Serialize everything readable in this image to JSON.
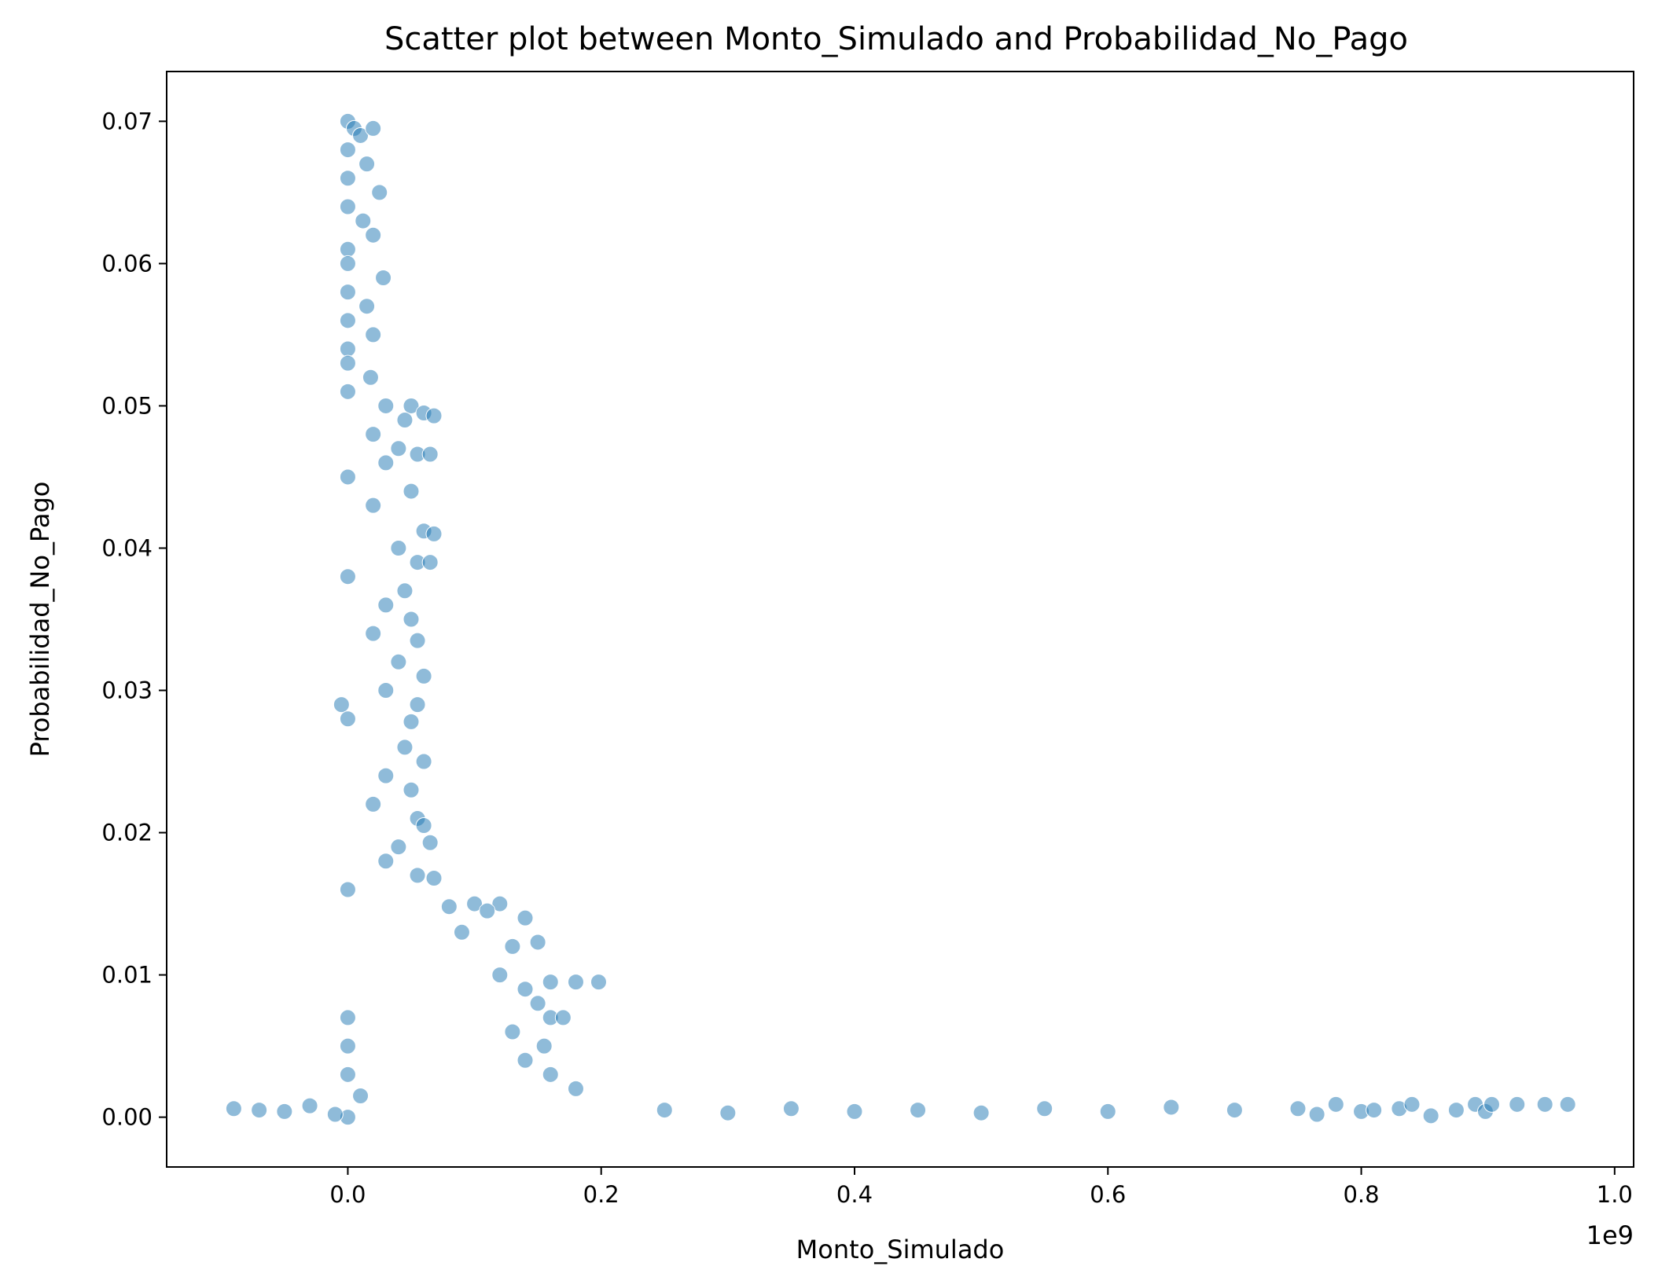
{
  "chart_data": {
    "type": "scatter",
    "title": "Scatter plot between Monto_Simulado and Probabilidad_No_Pago",
    "xlabel": "Monto_Simulado",
    "ylabel": "Probabilidad_No_Pago",
    "x_offset_text": "1e9",
    "xlim": [
      -0.143,
      1.015
    ],
    "ylim": [
      -0.0035,
      0.0735
    ],
    "xticks": [
      0.0,
      0.2,
      0.4,
      0.6,
      0.8,
      1.0
    ],
    "xtick_labels": [
      "0.0",
      "0.2",
      "0.4",
      "0.6",
      "0.8",
      "1.0"
    ],
    "yticks": [
      0.0,
      0.01,
      0.02,
      0.03,
      0.04,
      0.05,
      0.06,
      0.07
    ],
    "ytick_labels": [
      "0.00",
      "0.01",
      "0.02",
      "0.03",
      "0.04",
      "0.05",
      "0.06",
      "0.07"
    ],
    "grid": false,
    "legend": "none",
    "marker_color": "#1f77b4",
    "marker_edge_color": "#ffffff",
    "marker_alpha": 0.5,
    "series": [
      {
        "points": [
          [
            0.0,
            0.07
          ],
          [
            0.005,
            0.0695
          ],
          [
            0.01,
            0.069
          ],
          [
            0.02,
            0.0695
          ],
          [
            0.0,
            0.068
          ],
          [
            0.015,
            0.067
          ],
          [
            0.0,
            0.066
          ],
          [
            0.025,
            0.065
          ],
          [
            0.0,
            0.064
          ],
          [
            0.012,
            0.063
          ],
          [
            0.02,
            0.062
          ],
          [
            0.0,
            0.061
          ],
          [
            0.0,
            0.06
          ],
          [
            0.028,
            0.059
          ],
          [
            0.0,
            0.058
          ],
          [
            0.015,
            0.057
          ],
          [
            0.0,
            0.056
          ],
          [
            0.02,
            0.055
          ],
          [
            0.0,
            0.054
          ],
          [
            0.0,
            0.053
          ],
          [
            0.018,
            0.052
          ],
          [
            0.0,
            0.051
          ],
          [
            0.03,
            0.05
          ],
          [
            0.05,
            0.05
          ],
          [
            0.06,
            0.0495
          ],
          [
            0.068,
            0.0493
          ],
          [
            0.045,
            0.049
          ],
          [
            0.02,
            0.048
          ],
          [
            0.04,
            0.047
          ],
          [
            0.055,
            0.0466
          ],
          [
            0.065,
            0.0466
          ],
          [
            0.03,
            0.046
          ],
          [
            0.0,
            0.045
          ],
          [
            0.05,
            0.044
          ],
          [
            0.02,
            0.043
          ],
          [
            0.06,
            0.0412
          ],
          [
            0.068,
            0.041
          ],
          [
            0.04,
            0.04
          ],
          [
            0.055,
            0.039
          ],
          [
            0.065,
            0.039
          ],
          [
            0.0,
            0.038
          ],
          [
            0.045,
            0.037
          ],
          [
            0.03,
            0.036
          ],
          [
            0.05,
            0.035
          ],
          [
            0.02,
            0.034
          ],
          [
            0.055,
            0.0335
          ],
          [
            0.04,
            0.032
          ],
          [
            0.06,
            0.031
          ],
          [
            0.03,
            0.03
          ],
          [
            0.055,
            0.029
          ],
          [
            -0.005,
            0.029
          ],
          [
            0.0,
            0.028
          ],
          [
            0.05,
            0.0278
          ],
          [
            0.045,
            0.026
          ],
          [
            0.06,
            0.025
          ],
          [
            0.03,
            0.024
          ],
          [
            0.05,
            0.023
          ],
          [
            0.02,
            0.022
          ],
          [
            0.055,
            0.021
          ],
          [
            0.06,
            0.0205
          ],
          [
            0.04,
            0.019
          ],
          [
            0.065,
            0.0193
          ],
          [
            0.03,
            0.018
          ],
          [
            0.055,
            0.017
          ],
          [
            0.068,
            0.0168
          ],
          [
            0.0,
            0.016
          ],
          [
            0.1,
            0.015
          ],
          [
            0.12,
            0.015
          ],
          [
            0.08,
            0.0148
          ],
          [
            0.14,
            0.014
          ],
          [
            0.11,
            0.0145
          ],
          [
            0.15,
            0.0123
          ],
          [
            0.13,
            0.012
          ],
          [
            0.09,
            0.013
          ],
          [
            0.16,
            0.0095
          ],
          [
            0.18,
            0.0095
          ],
          [
            0.198,
            0.0095
          ],
          [
            0.12,
            0.01
          ],
          [
            0.14,
            0.009
          ],
          [
            0.15,
            0.008
          ],
          [
            0.16,
            0.007
          ],
          [
            0.17,
            0.007
          ],
          [
            0.13,
            0.006
          ],
          [
            0.155,
            0.005
          ],
          [
            0.14,
            0.004
          ],
          [
            0.16,
            0.003
          ],
          [
            0.18,
            0.002
          ],
          [
            0.0,
            0.007
          ],
          [
            0.0,
            0.005
          ],
          [
            0.0,
            0.003
          ],
          [
            0.01,
            0.0015
          ],
          [
            0.0,
            0.0
          ],
          [
            -0.09,
            0.0006
          ],
          [
            -0.07,
            0.0005
          ],
          [
            -0.05,
            0.0004
          ],
          [
            -0.03,
            0.0008
          ],
          [
            -0.01,
            0.0002
          ],
          [
            0.25,
            0.0005
          ],
          [
            0.3,
            0.0003
          ],
          [
            0.35,
            0.0006
          ],
          [
            0.4,
            0.0004
          ],
          [
            0.45,
            0.0005
          ],
          [
            0.5,
            0.0003
          ],
          [
            0.55,
            0.0006
          ],
          [
            0.6,
            0.0004
          ],
          [
            0.65,
            0.0007
          ],
          [
            0.7,
            0.0005
          ],
          [
            0.75,
            0.0006
          ],
          [
            0.765,
            0.0002
          ],
          [
            0.78,
            0.0009
          ],
          [
            0.8,
            0.0004
          ],
          [
            0.81,
            0.0005
          ],
          [
            0.83,
            0.0006
          ],
          [
            0.84,
            0.0009
          ],
          [
            0.855,
            0.0001
          ],
          [
            0.875,
            0.0005
          ],
          [
            0.89,
            0.0009
          ],
          [
            0.898,
            0.0004
          ],
          [
            0.903,
            0.0009
          ],
          [
            0.923,
            0.0009
          ],
          [
            0.945,
            0.0009
          ],
          [
            0.963,
            0.0009
          ]
        ]
      }
    ]
  }
}
